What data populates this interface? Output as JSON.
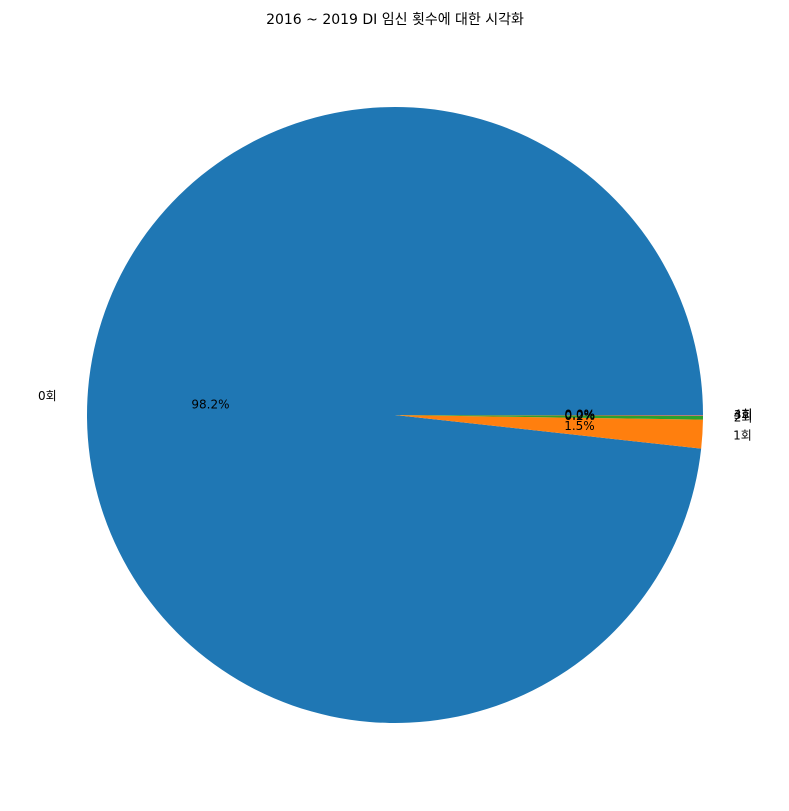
{
  "chart_data": {
    "type": "pie",
    "title": "2016 ~ 2019  DI 임신 횟수에 대한 시각화",
    "slices": [
      {
        "label": "0회",
        "value": 98.2,
        "pct_label": "98.2%",
        "color": "#1f77b4"
      },
      {
        "label": "1회",
        "value": 1.5,
        "pct_label": "1.5%",
        "color": "#ff7f0e"
      },
      {
        "label": "2회",
        "value": 0.2,
        "pct_label": "0.2%",
        "color": "#2ca02c"
      },
      {
        "label": "3회",
        "value": 0.03,
        "pct_label": "0.0%",
        "color": "#d62728"
      },
      {
        "label": "4회",
        "value": 0.01,
        "pct_label": "0.0%",
        "color": "#9467bd"
      }
    ],
    "start_angle_deg": 0,
    "direction": "counterclockwise"
  }
}
